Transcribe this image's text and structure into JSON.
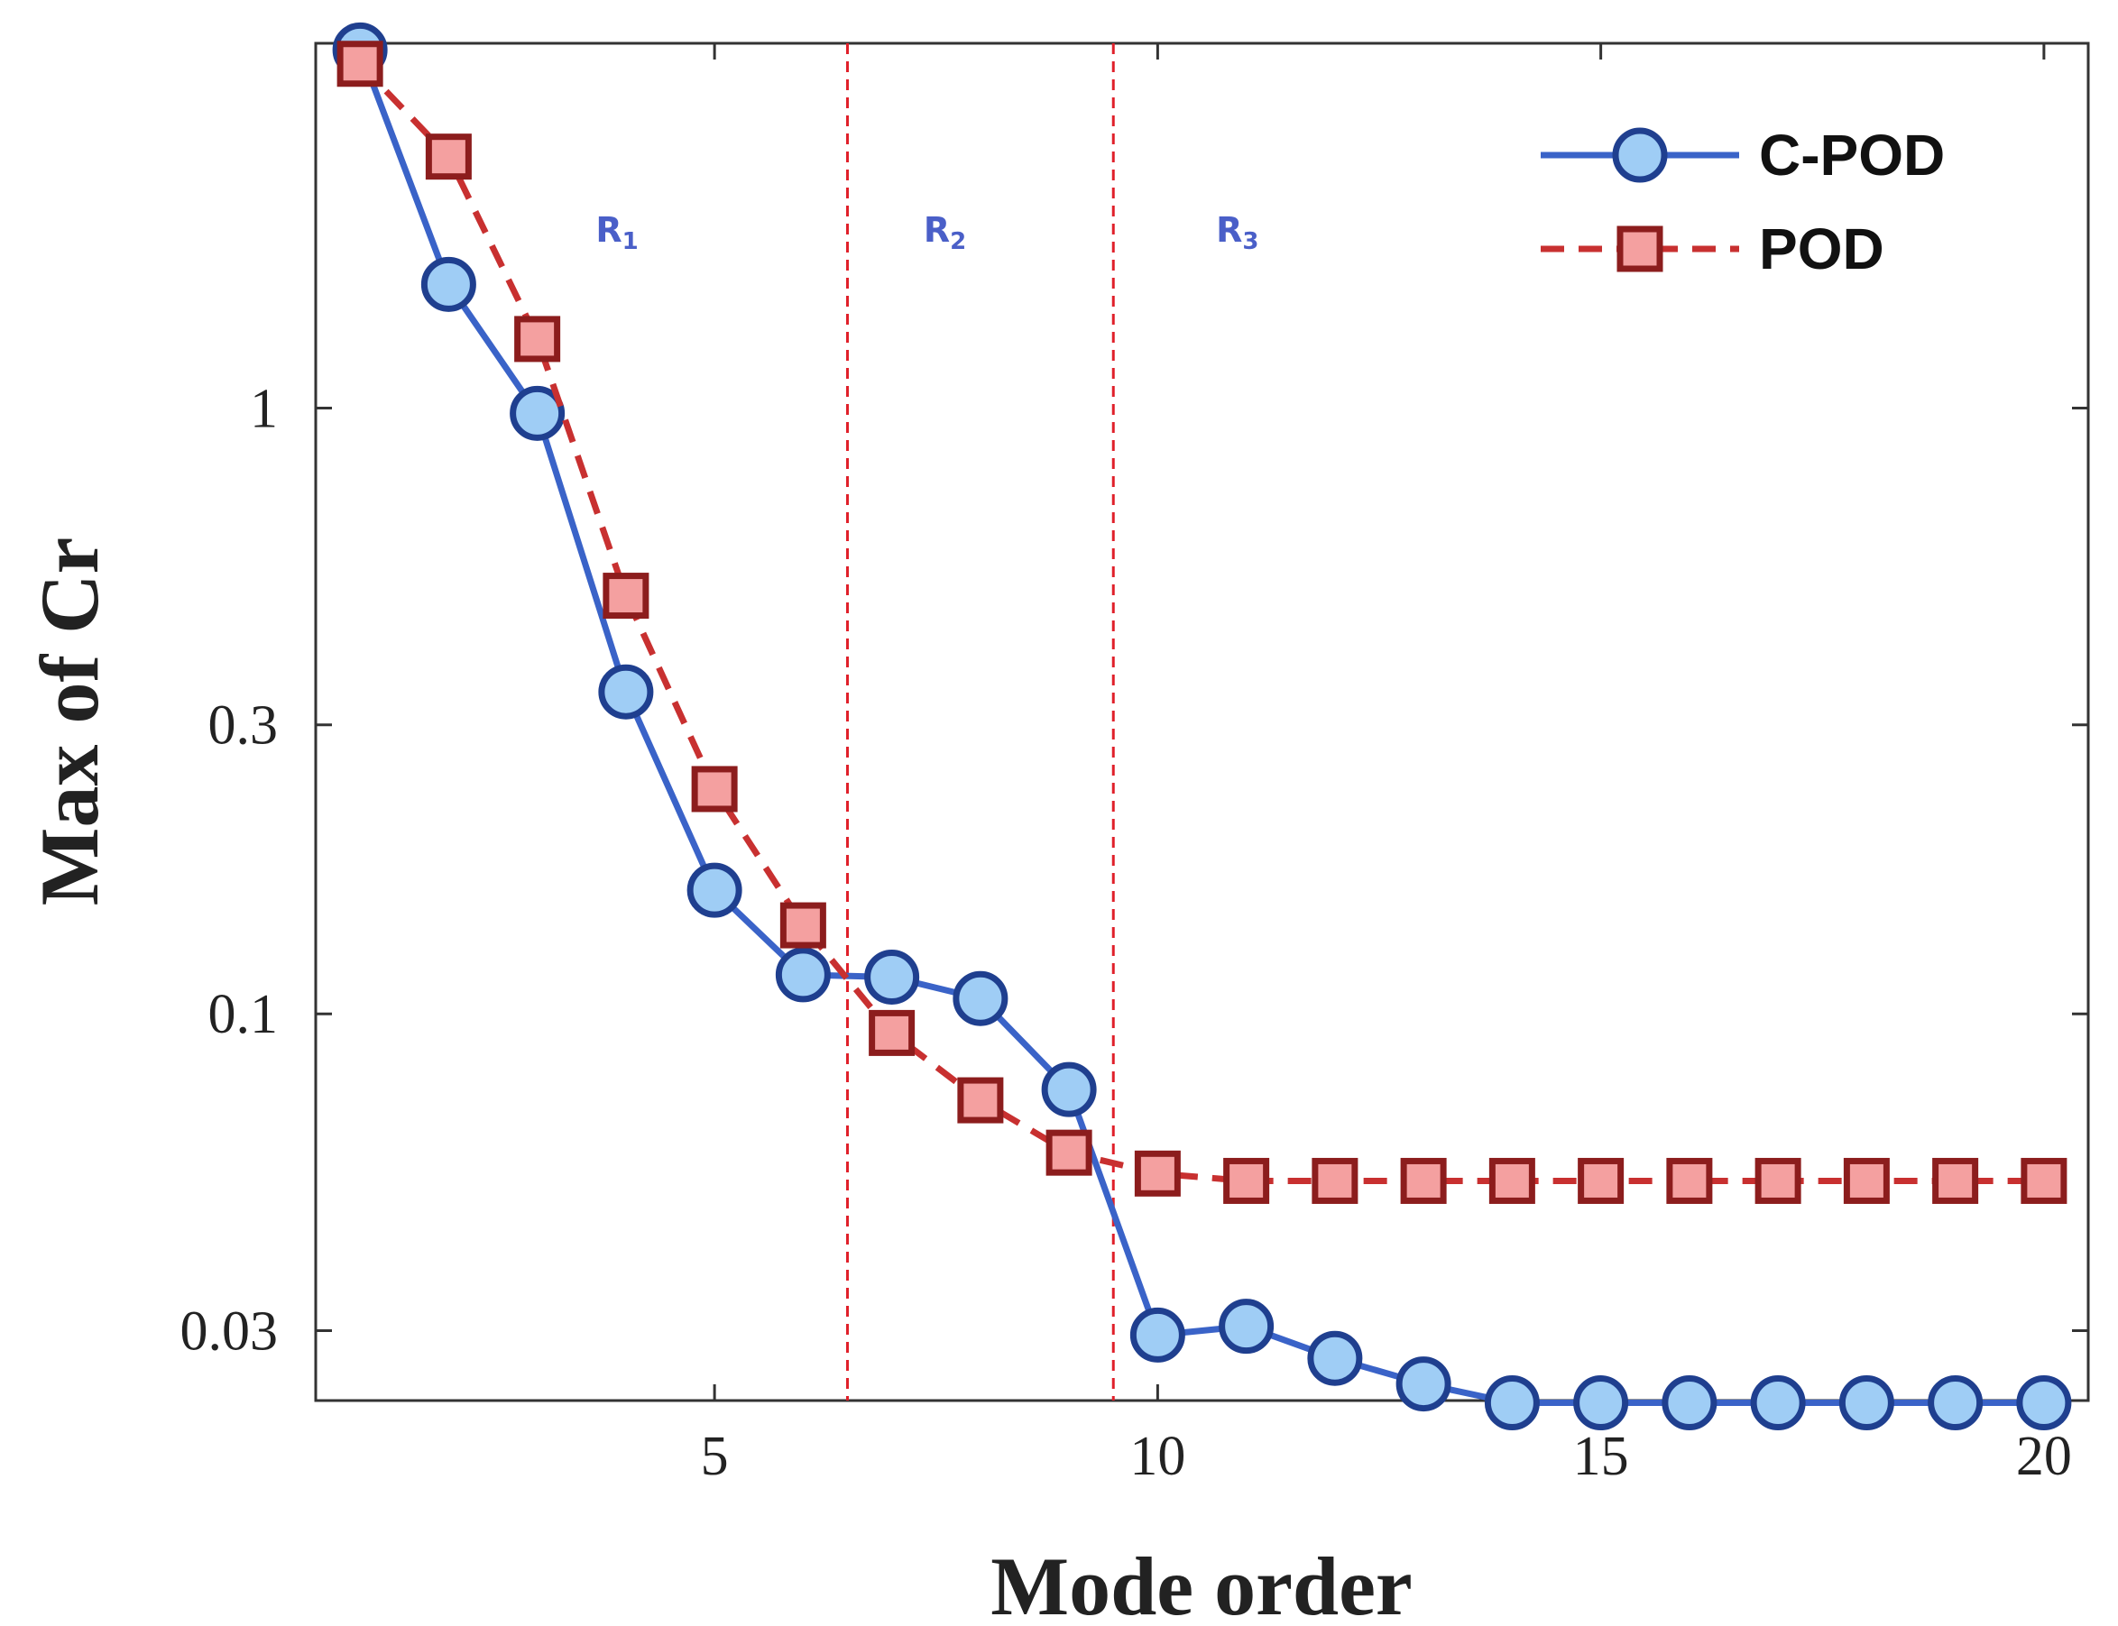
{
  "chart_data": {
    "type": "line",
    "xlabel": "Mode order",
    "ylabel": "Max of Cr",
    "y_scale": "log",
    "xlim": [
      0.5,
      20.5
    ],
    "ylim": [
      0.023,
      4.0
    ],
    "x_ticks": [
      5,
      10,
      15,
      20
    ],
    "x_tick_labels": [
      "5",
      "10",
      "15",
      "20"
    ],
    "y_ticks": [
      0.03,
      0.1,
      0.3,
      1
    ],
    "y_tick_labels": [
      "0.03",
      "0.1",
      "0.3",
      "1"
    ],
    "grid": false,
    "legend_position": "top-right",
    "x": [
      1,
      2,
      3,
      4,
      5,
      6,
      7,
      8,
      9,
      10,
      11,
      12,
      13,
      14,
      15,
      16,
      17,
      18,
      19,
      20
    ],
    "series": [
      {
        "name": "C-POD",
        "color": "#3a63c8",
        "marker": "circle",
        "marker_fill": "#9fcdf5",
        "marker_edge": "#1f3f8f",
        "line_style": "solid",
        "values": [
          3.9,
          1.6,
          0.98,
          0.34,
          0.16,
          0.116,
          0.115,
          0.106,
          0.075,
          0.0295,
          0.0305,
          0.027,
          0.0245,
          0.0228,
          0.0228,
          0.0228,
          0.0228,
          0.0228,
          0.0228,
          0.0228
        ]
      },
      {
        "name": "POD",
        "color": "#c83030",
        "marker": "square",
        "marker_fill": "#f4a0a0",
        "marker_edge": "#8c1d1d",
        "line_style": "dashed",
        "values": [
          3.7,
          2.6,
          1.3,
          0.49,
          0.235,
          0.14,
          0.093,
          0.072,
          0.059,
          0.0545,
          0.053,
          0.053,
          0.053,
          0.053,
          0.053,
          0.053,
          0.053,
          0.053,
          0.053,
          0.053
        ]
      }
    ],
    "regions": [
      {
        "label": "R",
        "sub": "1"
      },
      {
        "label": "R",
        "sub": "2"
      },
      {
        "label": "R",
        "sub": "3"
      }
    ],
    "region_boundaries": [
      6.5,
      9.5
    ],
    "boundary_color": "#e0202a"
  }
}
